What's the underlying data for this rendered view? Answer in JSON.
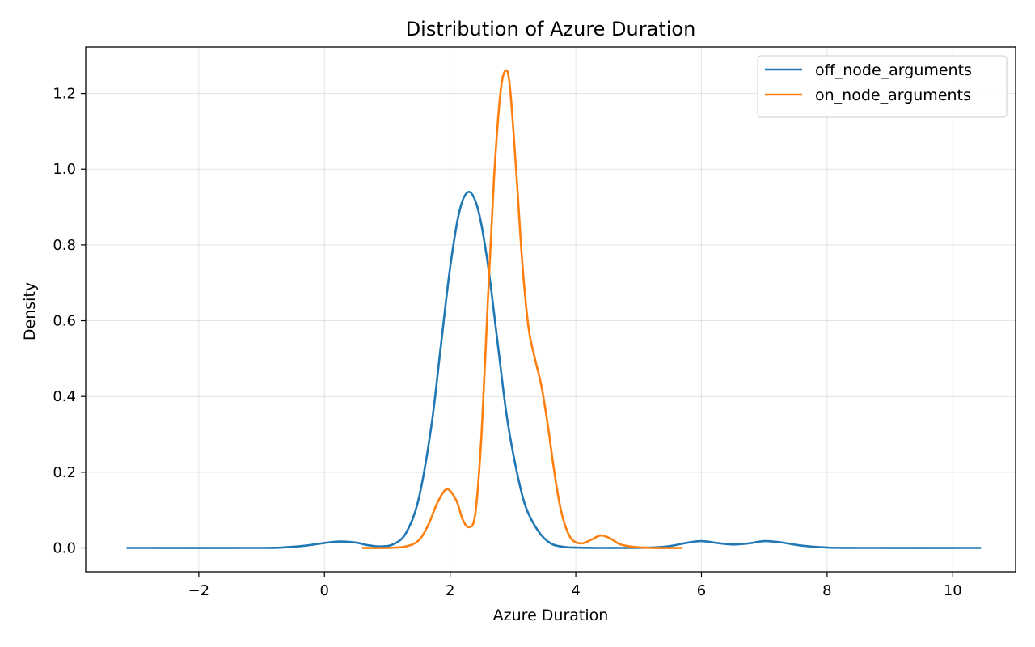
{
  "chart_data": {
    "type": "line",
    "title": "Distribution of Azure Duration",
    "xlabel": "Azure Duration",
    "ylabel": "Density",
    "xlim": [
      -3.8,
      11.0
    ],
    "ylim": [
      -0.063,
      1.323
    ],
    "xticks": [
      -2,
      0,
      2,
      4,
      6,
      8,
      10
    ],
    "xtick_labels": [
      "−2",
      "0",
      "2",
      "4",
      "6",
      "8",
      "10"
    ],
    "yticks": [
      0.0,
      0.2,
      0.4,
      0.6,
      0.8,
      1.0,
      1.2
    ],
    "ytick_labels": [
      "0.0",
      "0.2",
      "0.4",
      "0.6",
      "0.8",
      "1.0",
      "1.2"
    ],
    "grid": true,
    "legend_position": "top-right",
    "series": [
      {
        "name": "off_node_arguments",
        "color": "#1f77b4",
        "points": [
          [
            -3.15,
            0.0
          ],
          [
            -1.0,
            0.0
          ],
          [
            -0.6,
            0.002
          ],
          [
            -0.3,
            0.006
          ],
          [
            0.0,
            0.013
          ],
          [
            0.25,
            0.017
          ],
          [
            0.5,
            0.014
          ],
          [
            0.7,
            0.007
          ],
          [
            0.9,
            0.004
          ],
          [
            1.1,
            0.01
          ],
          [
            1.3,
            0.04
          ],
          [
            1.5,
            0.13
          ],
          [
            1.7,
            0.32
          ],
          [
            1.85,
            0.53
          ],
          [
            2.0,
            0.74
          ],
          [
            2.15,
            0.89
          ],
          [
            2.3,
            0.94
          ],
          [
            2.45,
            0.89
          ],
          [
            2.6,
            0.75
          ],
          [
            2.75,
            0.55
          ],
          [
            2.9,
            0.35
          ],
          [
            3.05,
            0.21
          ],
          [
            3.2,
            0.11
          ],
          [
            3.4,
            0.045
          ],
          [
            3.6,
            0.012
          ],
          [
            3.8,
            0.003
          ],
          [
            4.0,
            0.001
          ],
          [
            4.5,
            0.0
          ],
          [
            5.2,
            0.001
          ],
          [
            5.5,
            0.005
          ],
          [
            5.75,
            0.013
          ],
          [
            6.0,
            0.018
          ],
          [
            6.25,
            0.013
          ],
          [
            6.5,
            0.009
          ],
          [
            6.75,
            0.012
          ],
          [
            7.0,
            0.018
          ],
          [
            7.25,
            0.015
          ],
          [
            7.6,
            0.006
          ],
          [
            8.0,
            0.001
          ],
          [
            8.5,
            0.0
          ],
          [
            10.45,
            0.0
          ]
        ]
      },
      {
        "name": "on_node_arguments",
        "color": "#ff7f0e",
        "points": [
          [
            0.6,
            0.0
          ],
          [
            1.0,
            0.0
          ],
          [
            1.3,
            0.004
          ],
          [
            1.5,
            0.02
          ],
          [
            1.65,
            0.06
          ],
          [
            1.8,
            0.12
          ],
          [
            1.95,
            0.155
          ],
          [
            2.1,
            0.125
          ],
          [
            2.2,
            0.075
          ],
          [
            2.3,
            0.055
          ],
          [
            2.4,
            0.09
          ],
          [
            2.5,
            0.3
          ],
          [
            2.6,
            0.65
          ],
          [
            2.7,
            0.98
          ],
          [
            2.8,
            1.2
          ],
          [
            2.88,
            1.26
          ],
          [
            2.95,
            1.22
          ],
          [
            3.05,
            1.0
          ],
          [
            3.15,
            0.75
          ],
          [
            3.25,
            0.58
          ],
          [
            3.35,
            0.5
          ],
          [
            3.45,
            0.43
          ],
          [
            3.55,
            0.33
          ],
          [
            3.65,
            0.21
          ],
          [
            3.75,
            0.11
          ],
          [
            3.85,
            0.05
          ],
          [
            3.95,
            0.02
          ],
          [
            4.1,
            0.012
          ],
          [
            4.25,
            0.022
          ],
          [
            4.4,
            0.033
          ],
          [
            4.55,
            0.025
          ],
          [
            4.7,
            0.01
          ],
          [
            4.9,
            0.003
          ],
          [
            5.2,
            0.0
          ],
          [
            5.7,
            0.0
          ]
        ]
      }
    ]
  }
}
